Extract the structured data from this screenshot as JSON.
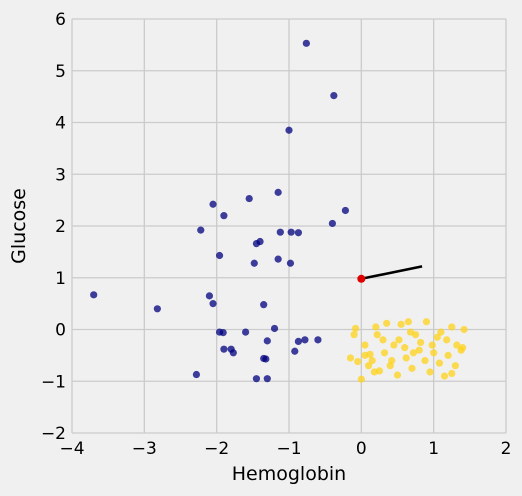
{
  "chart_data": {
    "type": "scatter",
    "title": "",
    "xlabel": "Hemoglobin",
    "ylabel": "Glucose",
    "xlim": [
      -4,
      2
    ],
    "ylim": [
      -2,
      6
    ],
    "xticks": [
      -4,
      -3,
      -2,
      -1,
      0,
      1,
      2
    ],
    "yticks": [
      -2,
      -1,
      0,
      1,
      2,
      3,
      4,
      5,
      6
    ],
    "xtick_labels": [
      "−4",
      "−3",
      "−2",
      "−1",
      "0",
      "1",
      "2"
    ],
    "ytick_labels": [
      "−2",
      "−1",
      "0",
      "1",
      "2",
      "3",
      "4",
      "5",
      "6"
    ],
    "grid": true,
    "background": "#f0f0f0",
    "gridcolor": "#cbcbcb",
    "series": [
      {
        "color": "#00007f",
        "points": [
          [
            -0.76,
            5.53
          ],
          [
            -0.38,
            4.52
          ],
          [
            -1.0,
            3.85
          ],
          [
            -1.15,
            2.65
          ],
          [
            -1.55,
            2.53
          ],
          [
            -2.05,
            2.42
          ],
          [
            -0.22,
            2.3
          ],
          [
            -1.9,
            2.2
          ],
          [
            -0.4,
            2.05
          ],
          [
            -2.22,
            1.92
          ],
          [
            -1.12,
            1.88
          ],
          [
            -0.97,
            1.88
          ],
          [
            -0.87,
            1.87
          ],
          [
            -1.4,
            1.7
          ],
          [
            -1.45,
            1.66
          ],
          [
            -1.96,
            1.43
          ],
          [
            -1.15,
            1.36
          ],
          [
            -1.48,
            1.28
          ],
          [
            -0.98,
            1.28
          ],
          [
            -3.7,
            0.67
          ],
          [
            -2.1,
            0.65
          ],
          [
            -2.05,
            0.5
          ],
          [
            -1.35,
            0.48
          ],
          [
            -2.82,
            0.4
          ],
          [
            -1.2,
            0.02
          ],
          [
            -1.96,
            -0.05
          ],
          [
            -1.91,
            -0.06
          ],
          [
            -1.6,
            -0.05
          ],
          [
            -0.78,
            -0.2
          ],
          [
            -0.87,
            -0.23
          ],
          [
            -0.6,
            -0.2
          ],
          [
            -1.3,
            -0.22
          ],
          [
            -1.9,
            -0.38
          ],
          [
            -1.8,
            -0.38
          ],
          [
            -1.77,
            -0.45
          ],
          [
            -0.92,
            -0.42
          ],
          [
            -1.35,
            -0.56
          ],
          [
            -1.32,
            -0.57
          ],
          [
            -2.28,
            -0.87
          ],
          [
            -1.45,
            -0.95
          ],
          [
            -1.3,
            -0.95
          ]
        ]
      },
      {
        "color": "#ffd319",
        "points": [
          [
            0.0,
            -0.96
          ],
          [
            0.05,
            -0.5
          ],
          [
            0.12,
            -0.48
          ],
          [
            -0.08,
            0.02
          ],
          [
            0.2,
            0.05
          ],
          [
            0.35,
            0.12
          ],
          [
            0.55,
            0.1
          ],
          [
            0.65,
            0.15
          ],
          [
            0.9,
            0.15
          ],
          [
            1.1,
            -0.05
          ],
          [
            1.25,
            0.05
          ],
          [
            1.42,
            0.0
          ],
          [
            0.3,
            -0.2
          ],
          [
            0.45,
            -0.3
          ],
          [
            0.6,
            -0.35
          ],
          [
            0.8,
            -0.4
          ],
          [
            1.0,
            -0.45
          ],
          [
            1.2,
            -0.5
          ],
          [
            1.38,
            -0.4
          ],
          [
            0.15,
            -0.6
          ],
          [
            0.4,
            -0.7
          ],
          [
            0.7,
            -0.75
          ],
          [
            0.95,
            -0.82
          ],
          [
            1.15,
            -0.9
          ],
          [
            0.25,
            -0.8
          ],
          [
            0.5,
            -0.88
          ],
          [
            0.05,
            -0.3
          ],
          [
            0.22,
            -0.1
          ],
          [
            0.68,
            -0.05
          ],
          [
            0.82,
            -0.25
          ],
          [
            1.05,
            -0.15
          ],
          [
            1.32,
            -0.3
          ],
          [
            0.1,
            -0.7
          ],
          [
            0.62,
            -0.55
          ],
          [
            0.88,
            -0.6
          ],
          [
            1.3,
            -0.7
          ],
          [
            1.4,
            -0.35
          ],
          [
            -0.15,
            -0.55
          ],
          [
            -0.05,
            -0.62
          ],
          [
            0.32,
            -0.45
          ],
          [
            0.52,
            -0.2
          ],
          [
            0.75,
            -0.1
          ],
          [
            0.98,
            -0.3
          ],
          [
            1.18,
            -0.2
          ],
          [
            0.18,
            -0.82
          ],
          [
            0.42,
            -0.6
          ],
          [
            0.72,
            -0.45
          ],
          [
            1.08,
            -0.65
          ],
          [
            1.25,
            -0.85
          ],
          [
            -0.1,
            -0.1
          ]
        ]
      },
      {
        "color": "#e00000",
        "points": [
          [
            0.0,
            0.98
          ]
        ]
      }
    ],
    "annotations": [
      {
        "type": "segment",
        "color": "#000000",
        "from": [
          0.0,
          0.98
        ],
        "to": [
          0.84,
          1.22
        ]
      }
    ]
  }
}
